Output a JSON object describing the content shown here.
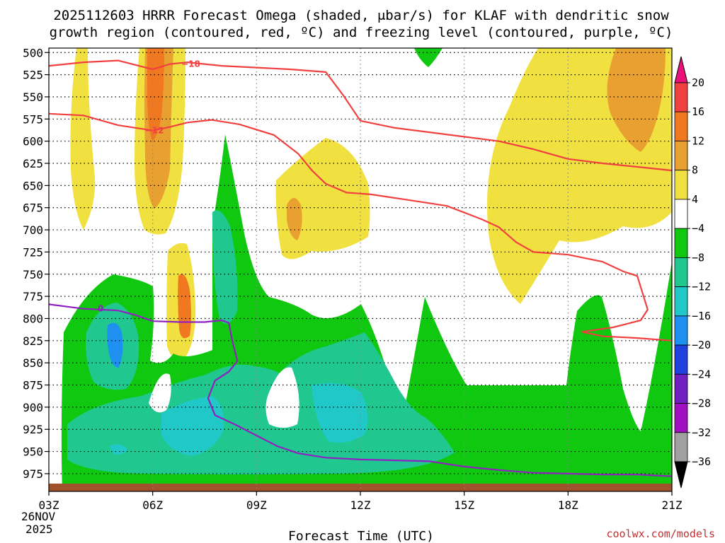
{
  "title_line1": "2025112603 HRRR Forecast Omega (shaded, μbar/s) for KLAF with dendritic snow",
  "title_line2": "growth region (contoured, red, ºC) and freezing level (contoured, purple, ºC)",
  "xlabel": "Forecast Time (UTC)",
  "credit": "coolwx.com/models",
  "date_sub1": "26NOV",
  "date_sub2": "2025",
  "colors": {
    "temp_contour": "#f04040",
    "freezing_contour": "#9020c0",
    "ground": "#a0522d",
    "credit": "#c03030"
  },
  "chart_data": {
    "type": "time-height contour",
    "xlabel": "Forecast Time (UTC)",
    "ylabel": "",
    "x_ticks": [
      "03Z",
      "06Z",
      "09Z",
      "12Z",
      "15Z",
      "18Z",
      "21Z"
    ],
    "x_range_hours": [
      3,
      21
    ],
    "y_ticks": [
      500,
      525,
      550,
      575,
      600,
      625,
      650,
      675,
      700,
      725,
      750,
      775,
      800,
      825,
      850,
      875,
      900,
      925,
      950,
      975
    ],
    "y_range_mb": [
      495,
      995
    ],
    "y_reversed": true,
    "grid": true,
    "colorbar": {
      "labels": [
        "20",
        "16",
        "12",
        "8",
        "4",
        "−4",
        "−8",
        "−12",
        "−16",
        "−20",
        "−24",
        "−28",
        "−32",
        "−36"
      ],
      "bands": [
        {
          "range": ">20",
          "color": "#e8127a"
        },
        {
          "range": "16 to 20",
          "color": "#f04040"
        },
        {
          "range": "12 to 16",
          "color": "#f07820"
        },
        {
          "range": "8 to 12",
          "color": "#e8a030"
        },
        {
          "range": "4 to 8",
          "color": "#f0e040"
        },
        {
          "range": "-4 to 4",
          "color": "#ffffff"
        },
        {
          "range": "-8 to -4",
          "color": "#10c810"
        },
        {
          "range": "-12 to -8",
          "color": "#20c890"
        },
        {
          "range": "-16 to -12",
          "color": "#20c8c8"
        },
        {
          "range": "-20 to -16",
          "color": "#1e90f0"
        },
        {
          "range": "-24 to -20",
          "color": "#2040e0"
        },
        {
          "range": "-28 to -24",
          "color": "#7020c0"
        },
        {
          "range": "-32 to -28",
          "color": "#a010c0"
        },
        {
          "range": "-36 to -32",
          "color": "#a0a0a0"
        },
        {
          "range": "<-36",
          "color": "#000000"
        }
      ]
    },
    "contours": [
      {
        "name": "-18",
        "color": "#f04040",
        "label": "−18",
        "label_at": [
          7.1,
          513
        ],
        "points": [
          [
            3,
            515
          ],
          [
            4,
            511
          ],
          [
            5,
            509
          ],
          [
            5.5,
            514
          ],
          [
            6,
            519
          ],
          [
            6.5,
            513
          ],
          [
            7,
            511
          ],
          [
            8,
            515
          ],
          [
            9,
            517
          ],
          [
            10,
            519
          ],
          [
            11,
            522
          ],
          [
            11.5,
            548
          ],
          [
            12,
            577
          ],
          [
            13,
            585
          ],
          [
            14,
            590
          ],
          [
            15,
            595
          ],
          [
            16,
            600
          ],
          [
            17,
            609
          ],
          [
            18,
            620
          ],
          [
            19,
            625
          ],
          [
            20,
            629
          ],
          [
            21,
            633
          ]
        ]
      },
      {
        "name": "-12",
        "color": "#f04040",
        "label": "−12",
        "label_at": [
          6.05,
          588
        ],
        "points": [
          [
            3,
            569
          ],
          [
            4,
            571
          ],
          [
            5,
            582
          ],
          [
            6,
            588
          ],
          [
            6.5,
            584
          ],
          [
            7,
            579
          ],
          [
            7.7,
            576
          ],
          [
            8.5,
            581
          ],
          [
            9.5,
            593
          ],
          [
            10.2,
            614
          ],
          [
            10.6,
            633
          ],
          [
            11,
            648
          ],
          [
            11.6,
            658
          ],
          [
            12.3,
            660
          ],
          [
            13.5,
            667
          ],
          [
            14.5,
            673
          ],
          [
            15.5,
            688
          ],
          [
            16,
            697
          ],
          [
            16.5,
            714
          ],
          [
            17,
            725
          ],
          [
            18,
            728
          ],
          [
            19,
            736
          ],
          [
            19.6,
            747
          ],
          [
            20,
            752
          ],
          [
            20.3,
            790
          ],
          [
            20.1,
            802
          ],
          [
            19.3,
            810
          ],
          [
            18.4,
            815
          ],
          [
            19,
            820
          ],
          [
            20,
            822
          ],
          [
            21,
            825
          ]
        ]
      },
      {
        "name": "0",
        "color": "#9020c0",
        "label": "0",
        "label_at": [
          4.5,
          789
        ],
        "points": [
          [
            3,
            784
          ],
          [
            4,
            789
          ],
          [
            4.5,
            790
          ],
          [
            5,
            791
          ],
          [
            5.5,
            796
          ],
          [
            6,
            803
          ],
          [
            6.8,
            804
          ],
          [
            7.5,
            804
          ],
          [
            8,
            802
          ],
          [
            8.2,
            805
          ],
          [
            8.3,
            825
          ],
          [
            8.45,
            848
          ],
          [
            8.2,
            860
          ],
          [
            7.8,
            870
          ],
          [
            7.6,
            890
          ],
          [
            7.8,
            909
          ],
          [
            8.4,
            920
          ],
          [
            9,
            932
          ],
          [
            9.6,
            944
          ],
          [
            10.2,
            952
          ],
          [
            11,
            957
          ],
          [
            12,
            959
          ],
          [
            13,
            960
          ],
          [
            14,
            961
          ],
          [
            15,
            967
          ],
          [
            16,
            971
          ],
          [
            17,
            974
          ],
          [
            18,
            975
          ],
          [
            19,
            976
          ],
          [
            20,
            976
          ],
          [
            21,
            978
          ]
        ]
      }
    ],
    "shaded_regions_note": "omega shading regions: rising motion (green/teal) in lower levels; sinking (yellow/orange) aloft"
  }
}
